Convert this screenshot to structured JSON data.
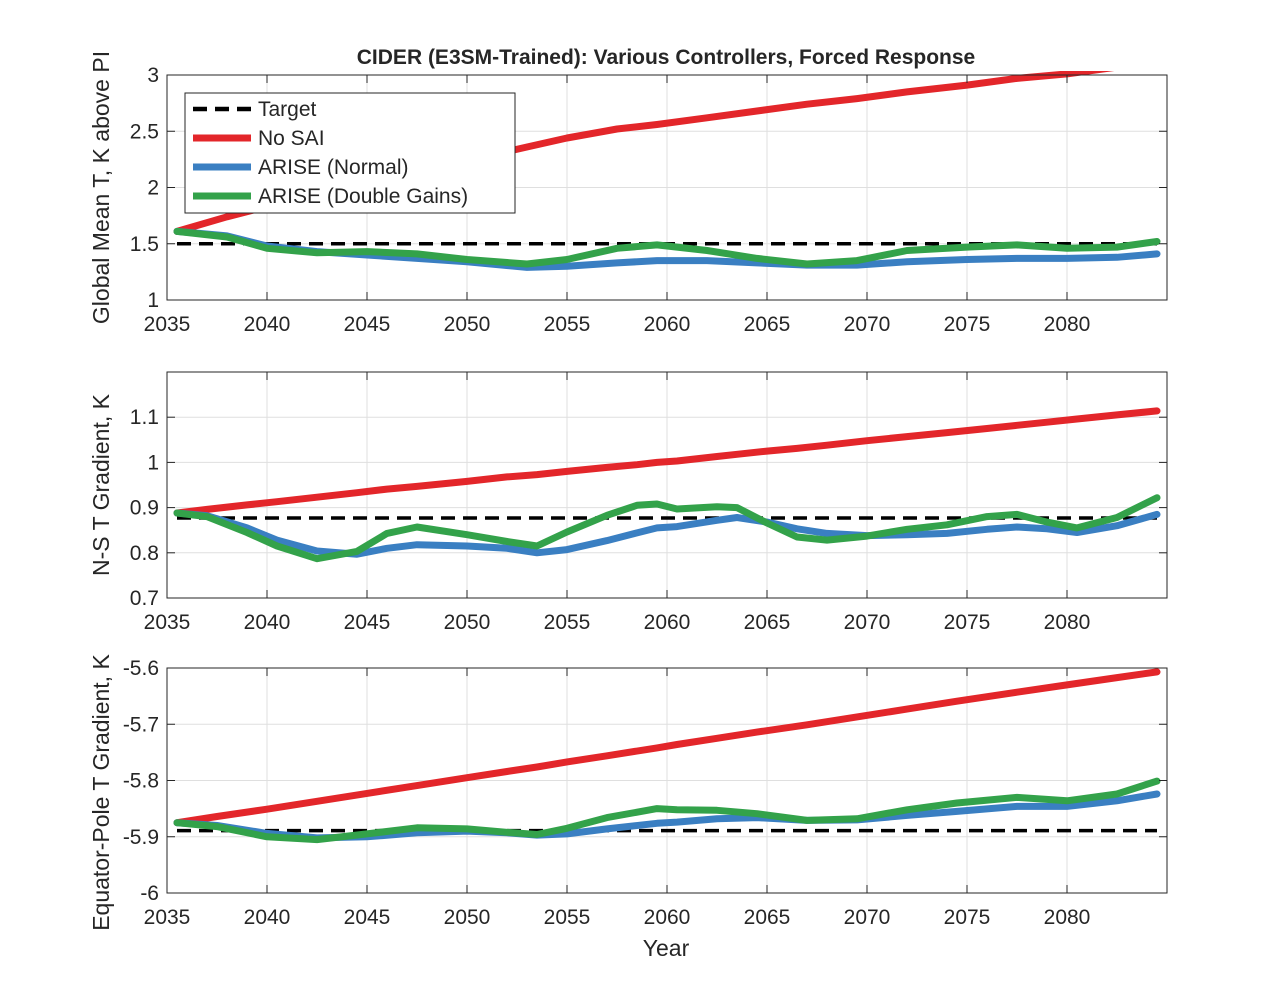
{
  "chart_data": {
    "type": "line",
    "title": "CIDER (E3SM-Trained): Various Controllers, Forced Response",
    "xlabel": "Year",
    "legend_placement": "top-left of first panel",
    "series_styles": [
      {
        "name": "Target",
        "color": "#000000",
        "dash": true
      },
      {
        "name": "No SAI",
        "color": "#e3262a",
        "dash": false
      },
      {
        "name": "ARISE (Normal)",
        "color": "#3a7fc2",
        "dash": false
      },
      {
        "name": "ARISE (Double Gains)",
        "color": "#33a24a",
        "dash": false
      }
    ],
    "panels": [
      {
        "ylabel": "Global Mean T, K above PI",
        "xlim": [
          2035,
          2085
        ],
        "ylim": [
          1,
          3
        ],
        "xticks": [
          2035,
          2040,
          2045,
          2050,
          2055,
          2060,
          2065,
          2070,
          2075,
          2080
        ],
        "xtick_labels": [
          "2035",
          "2040",
          "2045",
          "2050",
          "2055",
          "2060",
          "2065",
          "2070",
          "2075",
          "2080"
        ],
        "yticks": [
          1,
          1.5,
          2,
          2.5,
          3
        ],
        "ytick_labels": [
          "1",
          "1.5",
          "2",
          "2.5",
          "3"
        ],
        "x": [
          2035.5,
          2038,
          2040,
          2042.5,
          2045,
          2047.5,
          2050,
          2053,
          2055,
          2057.5,
          2059.5,
          2062,
          2064.5,
          2067,
          2069.5,
          2072,
          2075,
          2077.5,
          2080,
          2082.5,
          2084.5
        ],
        "series": [
          {
            "name": "Target",
            "values": [
              1.5,
              1.5,
              1.5,
              1.5,
              1.5,
              1.5,
              1.5,
              1.5,
              1.5,
              1.5,
              1.5,
              1.5,
              1.5,
              1.5,
              1.5,
              1.5,
              1.5,
              1.5,
              1.5,
              1.5,
              1.5
            ]
          },
          {
            "name": "No SAI",
            "values": [
              1.61,
              1.74,
              1.83,
              1.94,
              2.04,
              2.15,
              2.24,
              2.36,
              2.44,
              2.52,
              2.56,
              2.62,
              2.68,
              2.74,
              2.79,
              2.85,
              2.91,
              2.97,
              3.01,
              3.07,
              3.1
            ]
          },
          {
            "name": "ARISE (Normal)",
            "values": [
              1.61,
              1.57,
              1.48,
              1.43,
              1.4,
              1.37,
              1.34,
              1.29,
              1.3,
              1.33,
              1.35,
              1.35,
              1.33,
              1.31,
              1.31,
              1.34,
              1.36,
              1.37,
              1.37,
              1.38,
              1.41
            ]
          },
          {
            "name": "ARISE (Double Gains)",
            "values": [
              1.61,
              1.56,
              1.46,
              1.42,
              1.43,
              1.41,
              1.36,
              1.32,
              1.36,
              1.46,
              1.49,
              1.44,
              1.37,
              1.32,
              1.35,
              1.44,
              1.47,
              1.49,
              1.46,
              1.47,
              1.52
            ]
          }
        ]
      },
      {
        "ylabel": "N-S T Gradient, K",
        "xlim": [
          2035,
          2085
        ],
        "ylim": [
          0.7,
          1.2
        ],
        "xticks": [
          2035,
          2040,
          2045,
          2050,
          2055,
          2060,
          2065,
          2070,
          2075,
          2080
        ],
        "xtick_labels": [
          "2035",
          "2040",
          "2045",
          "2050",
          "2055",
          "2060",
          "2065",
          "2070",
          "2075",
          "2080"
        ],
        "yticks": [
          0.7,
          0.8,
          0.9,
          1,
          1.1
        ],
        "ytick_labels": [
          "0.7",
          "0.8",
          "0.9",
          "1",
          "1.1"
        ],
        "x": [
          2035.5,
          2037,
          2039,
          2040.5,
          2042.5,
          2044.5,
          2046,
          2047.5,
          2050,
          2052,
          2053.5,
          2055,
          2057,
          2058.5,
          2059.5,
          2060.5,
          2062.5,
          2063.5,
          2065,
          2066.5,
          2068,
          2070,
          2072,
          2074,
          2076,
          2077.5,
          2079,
          2080.5,
          2082.5,
          2084.5
        ],
        "series": [
          {
            "name": "Target",
            "values": [
              0.877,
              0.877,
              0.877,
              0.877,
              0.877,
              0.877,
              0.877,
              0.877,
              0.877,
              0.877,
              0.877,
              0.877,
              0.877,
              0.877,
              0.877,
              0.877,
              0.877,
              0.877,
              0.877,
              0.877,
              0.877,
              0.877,
              0.877,
              0.877,
              0.877,
              0.877,
              0.877,
              0.877,
              0.877,
              0.877
            ]
          },
          {
            "name": "No SAI",
            "values": [
              0.888,
              0.896,
              0.906,
              0.913,
              0.923,
              0.933,
              0.941,
              0.947,
              0.958,
              0.968,
              0.973,
              0.98,
              0.989,
              0.995,
              1.0,
              1.003,
              1.013,
              1.018,
              1.025,
              1.031,
              1.038,
              1.048,
              1.057,
              1.066,
              1.075,
              1.082,
              1.089,
              1.096,
              1.105,
              1.114
            ]
          },
          {
            "name": "ARISE (Normal)",
            "values": [
              0.888,
              0.882,
              0.855,
              0.828,
              0.804,
              0.797,
              0.81,
              0.818,
              0.815,
              0.81,
              0.8,
              0.807,
              0.827,
              0.844,
              0.855,
              0.858,
              0.872,
              0.878,
              0.868,
              0.853,
              0.843,
              0.838,
              0.84,
              0.843,
              0.852,
              0.857,
              0.853,
              0.845,
              0.86,
              0.885
            ]
          },
          {
            "name": "ARISE (Double Gains)",
            "values": [
              0.888,
              0.88,
              0.845,
              0.815,
              0.787,
              0.803,
              0.843,
              0.857,
              0.84,
              0.825,
              0.815,
              0.846,
              0.883,
              0.905,
              0.908,
              0.897,
              0.902,
              0.9,
              0.866,
              0.835,
              0.828,
              0.837,
              0.852,
              0.862,
              0.88,
              0.885,
              0.868,
              0.855,
              0.878,
              0.922
            ]
          }
        ]
      },
      {
        "ylabel": "Equator-Pole T Gradient, K",
        "xlim": [
          2035,
          2085
        ],
        "ylim": [
          -6,
          -5.6
        ],
        "xticks": [
          2035,
          2040,
          2045,
          2050,
          2055,
          2060,
          2065,
          2070,
          2075,
          2080
        ],
        "xtick_labels": [
          "2035",
          "2040",
          "2045",
          "2050",
          "2055",
          "2060",
          "2065",
          "2070",
          "2075",
          "2080"
        ],
        "yticks": [
          -6,
          -5.9,
          -5.8,
          -5.7,
          -5.6
        ],
        "ytick_labels": [
          "-6",
          "-5.9",
          "-5.8",
          "-5.7",
          "-5.6"
        ],
        "x": [
          2035.5,
          2037.5,
          2040,
          2042.5,
          2045,
          2047.5,
          2050,
          2052,
          2053.5,
          2055,
          2057,
          2059.5,
          2060.5,
          2062.5,
          2064.5,
          2067,
          2069.5,
          2072,
          2074.5,
          2077.5,
          2080,
          2082.5,
          2084.5
        ],
        "series": [
          {
            "name": "Target",
            "values": [
              -5.889,
              -5.889,
              -5.889,
              -5.889,
              -5.889,
              -5.889,
              -5.889,
              -5.889,
              -5.889,
              -5.889,
              -5.889,
              -5.889,
              -5.889,
              -5.889,
              -5.889,
              -5.889,
              -5.889,
              -5.889,
              -5.889,
              -5.889,
              -5.889,
              -5.889,
              -5.889
            ]
          },
          {
            "name": "No SAI",
            "values": [
              -5.875,
              -5.864,
              -5.851,
              -5.837,
              -5.823,
              -5.809,
              -5.795,
              -5.784,
              -5.776,
              -5.767,
              -5.756,
              -5.742,
              -5.736,
              -5.725,
              -5.714,
              -5.701,
              -5.687,
              -5.673,
              -5.659,
              -5.643,
              -5.63,
              -5.617,
              -5.607
            ]
          },
          {
            "name": "ARISE (Normal)",
            "values": [
              -5.875,
              -5.88,
              -5.894,
              -5.902,
              -5.9,
              -5.893,
              -5.89,
              -5.893,
              -5.897,
              -5.895,
              -5.886,
              -5.876,
              -5.874,
              -5.868,
              -5.866,
              -5.871,
              -5.87,
              -5.862,
              -5.855,
              -5.846,
              -5.846,
              -5.836,
              -5.824
            ]
          },
          {
            "name": "ARISE (Double Gains)",
            "values": [
              -5.875,
              -5.882,
              -5.9,
              -5.905,
              -5.895,
              -5.884,
              -5.886,
              -5.892,
              -5.896,
              -5.885,
              -5.866,
              -5.85,
              -5.852,
              -5.853,
              -5.859,
              -5.871,
              -5.868,
              -5.852,
              -5.84,
              -5.83,
              -5.836,
              -5.824,
              -5.801
            ]
          }
        ]
      }
    ]
  }
}
